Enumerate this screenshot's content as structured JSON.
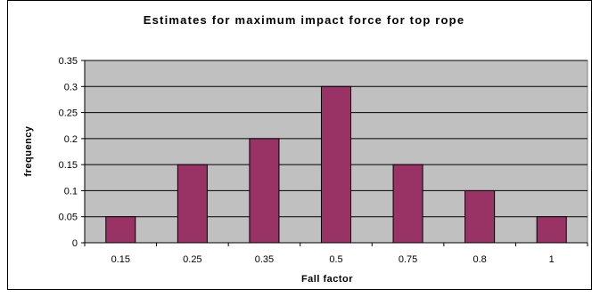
{
  "chart_data": {
    "type": "bar",
    "title": "Estimates for maximum impact force for top rope",
    "xlabel": "Fall factor",
    "ylabel": "frequency",
    "categories": [
      "0.15",
      "0.25",
      "0.35",
      "0.5",
      "0.75",
      "0.8",
      "1"
    ],
    "values": [
      0.05,
      0.15,
      0.2,
      0.3,
      0.15,
      0.1,
      0.05
    ],
    "ylim": [
      0,
      0.35
    ],
    "yticks": [
      "0",
      "0.05",
      "0.1",
      "0.15",
      "0.2",
      "0.25",
      "0.3",
      "0.35"
    ],
    "grid": true,
    "legend": "none",
    "colors": {
      "bar": "#993366",
      "plot_background": "#c0c0c0",
      "gridline": "#000000"
    }
  }
}
